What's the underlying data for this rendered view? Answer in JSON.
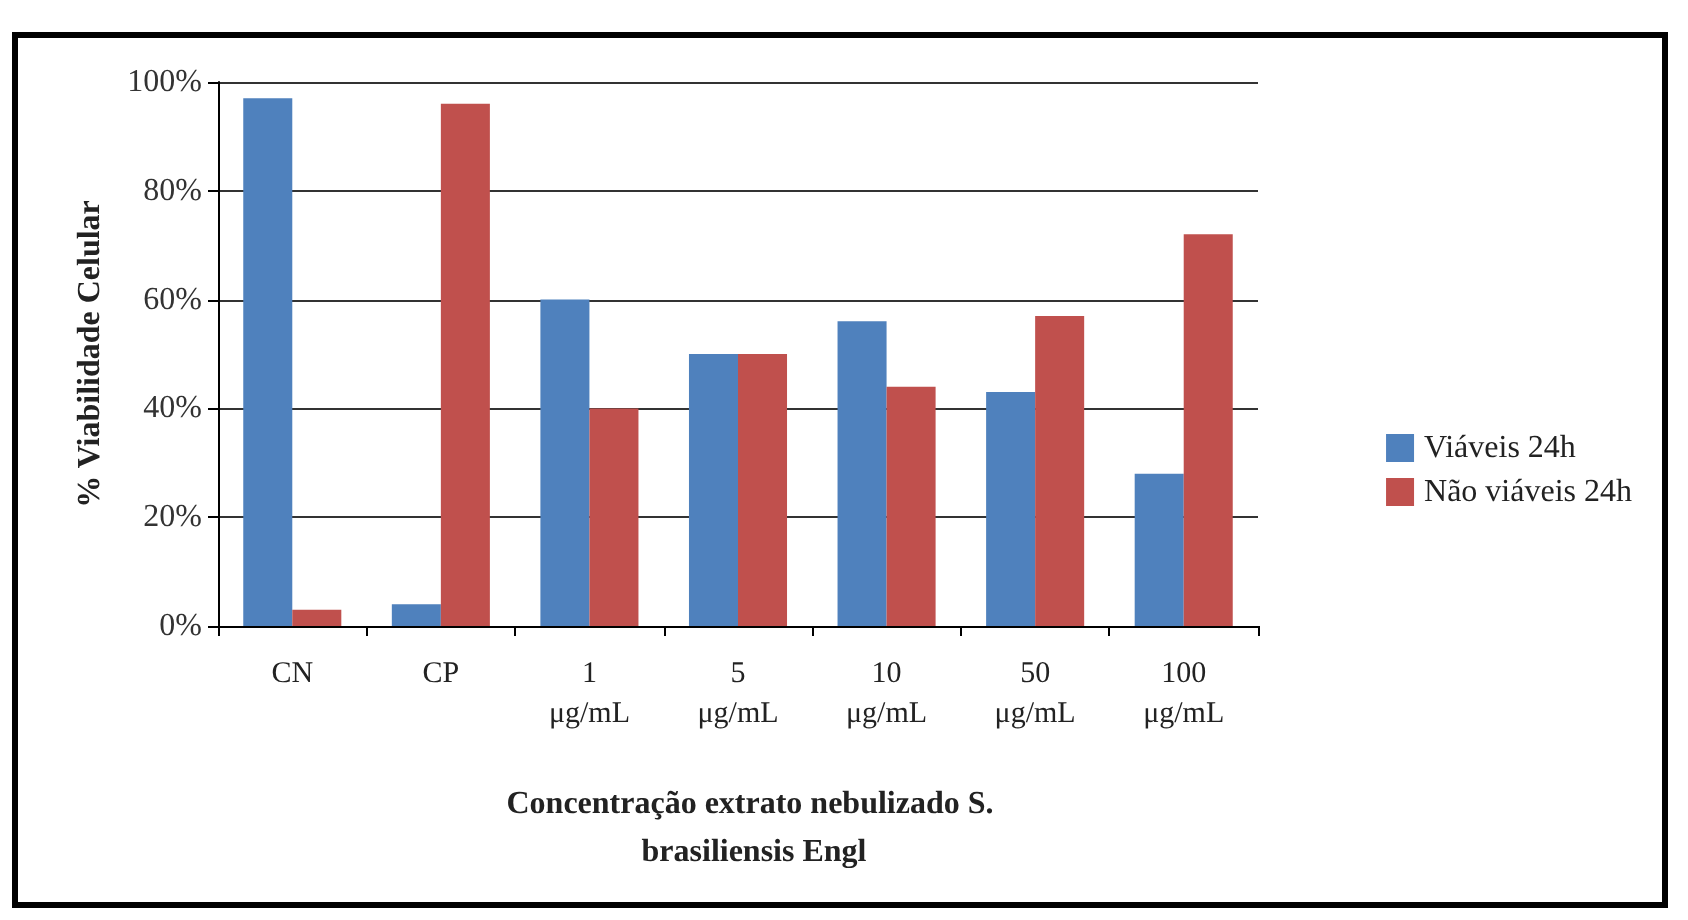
{
  "chart_data": {
    "type": "bar",
    "xlabel": "Concentração extrato nebulizado S. brasiliensis Engl",
    "ylabel": "% Viabilidade Celular",
    "categories": [
      "CN",
      "CP",
      "1 μg/mL",
      "5 μg/mL",
      "10 μg/mL",
      "50 μg/mL",
      "100 μg/mL"
    ],
    "series": [
      {
        "name": "Viáveis 24h",
        "color": "#4f81bd",
        "values": [
          97,
          4,
          60,
          50,
          56,
          43,
          28
        ]
      },
      {
        "name": "Não viáveis 24h",
        "color": "#c0504d",
        "values": [
          3,
          96,
          40,
          50,
          44,
          57,
          72
        ]
      }
    ],
    "ylim": [
      0,
      100
    ],
    "yticks": [
      {
        "value": 0,
        "label": "0%"
      },
      {
        "value": 20,
        "label": "20%"
      },
      {
        "value": 40,
        "label": "40%"
      },
      {
        "value": 60,
        "label": "60%"
      },
      {
        "value": 80,
        "label": "80%"
      },
      {
        "value": 100,
        "label": "100%"
      }
    ],
    "grid": "y",
    "legend": "right"
  }
}
